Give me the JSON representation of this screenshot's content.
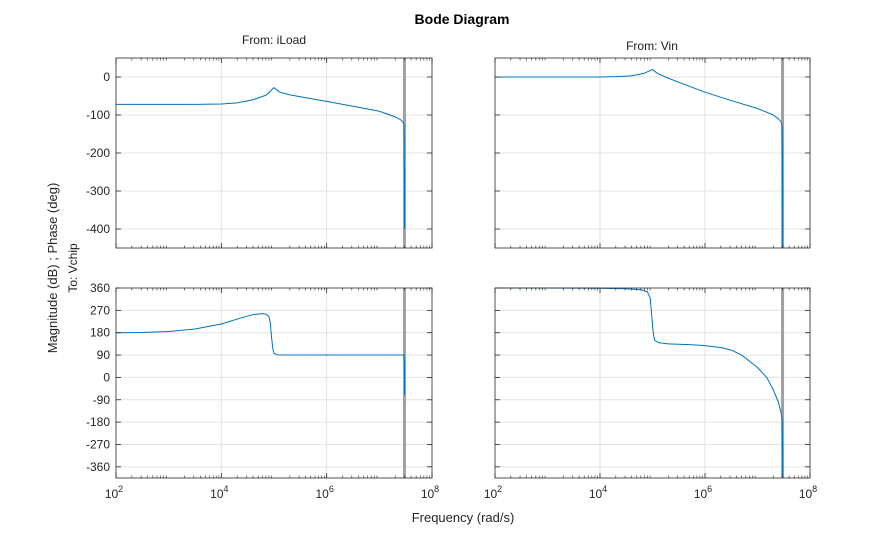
{
  "chart_data": {
    "type": "line",
    "title": "Bode Diagram",
    "xlabel": "Frequency (rad/s)",
    "ylabel": "Magnitude (dB) ; Phase (deg)",
    "row_label": "To: Vchip",
    "xscale": "log",
    "xlim": [
      100,
      100000000
    ],
    "x_ticks": [
      100,
      10000,
      1000000,
      100000000
    ],
    "x_tick_labels": [
      {
        "base": "10",
        "exp": "2"
      },
      {
        "base": "10",
        "exp": "4"
      },
      {
        "base": "10",
        "exp": "6"
      },
      {
        "base": "10",
        "exp": "8"
      }
    ],
    "grid": true,
    "line_color": "#0072BD",
    "marker_line_color": "#A0A0A0",
    "marker_x": 30000000,
    "columns": [
      "From: iLoad",
      "From: Vin"
    ],
    "magnitude": {
      "ylim": [
        -450,
        50
      ],
      "ticks": [
        0,
        -100,
        -200,
        -300,
        -400
      ],
      "tick_labels": [
        "0",
        "-100",
        "-200",
        "-300",
        "-400"
      ],
      "series": [
        {
          "x": [
            100,
            316,
            1000,
            3162,
            10000,
            20000,
            40000,
            70000,
            85000,
            95000,
            100000,
            110000,
            130000,
            200000,
            316000,
            1000000,
            3162000,
            10000000,
            20000000,
            25000000,
            28000000,
            29500000,
            30000000,
            30200000
          ],
          "y": [
            -72,
            -72,
            -72,
            -72,
            -71,
            -68,
            -60,
            -48,
            -38,
            -30,
            -28,
            -33,
            -40,
            -47,
            -52,
            -64,
            -77,
            -90,
            -105,
            -112,
            -118,
            -125,
            -250,
            -400
          ]
        },
        {
          "x": [
            100,
            316,
            1000,
            3162,
            10000,
            20000,
            40000,
            70000,
            90000,
            100000,
            110000,
            130000,
            200000,
            316000,
            1000000,
            3162000,
            10000000,
            20000000,
            25000000,
            28000000,
            29500000,
            30000000,
            30200000
          ],
          "y": [
            0,
            0,
            0,
            0,
            0,
            1,
            3,
            10,
            17,
            20,
            15,
            8,
            -3,
            -14,
            -40,
            -62,
            -83,
            -100,
            -110,
            -118,
            -130,
            -250,
            -450
          ]
        }
      ]
    },
    "phase": {
      "ylim": [
        -405,
        360
      ],
      "ticks": [
        360,
        270,
        180,
        90,
        0,
        -90,
        -180,
        -270,
        -360
      ],
      "tick_labels": [
        "360",
        "270",
        "180",
        "90",
        "0",
        "-90",
        "-180",
        "-270",
        "-360"
      ],
      "series": [
        {
          "x": [
            100,
            316,
            1000,
            3162,
            10000,
            20000,
            40000,
            60000,
            70000,
            80000,
            85000,
            90000,
            95000,
            100000,
            110000,
            130000,
            200000,
            1000000,
            10000000,
            25000000,
            29500000,
            30000000,
            30200000
          ],
          "y": [
            180,
            181,
            185,
            195,
            215,
            235,
            253,
            257,
            255,
            245,
            220,
            160,
            115,
            97,
            92,
            90,
            90,
            90,
            90,
            90,
            90,
            60,
            -70
          ]
        },
        {
          "x": [
            100,
            1000,
            10000,
            30000,
            60000,
            80000,
            90000,
            95000,
            100000,
            105000,
            110000,
            130000,
            200000,
            500000,
            1000000,
            2000000,
            3162000,
            5000000,
            10000000,
            15000000,
            20000000,
            25000000,
            28000000,
            29500000,
            30000000,
            30200000
          ],
          "y": [
            360,
            360,
            359,
            357,
            353,
            345,
            320,
            270,
            210,
            170,
            150,
            140,
            135,
            132,
            128,
            120,
            110,
            90,
            40,
            0,
            -50,
            -100,
            -140,
            -170,
            -280,
            -400
          ]
        }
      ]
    }
  }
}
